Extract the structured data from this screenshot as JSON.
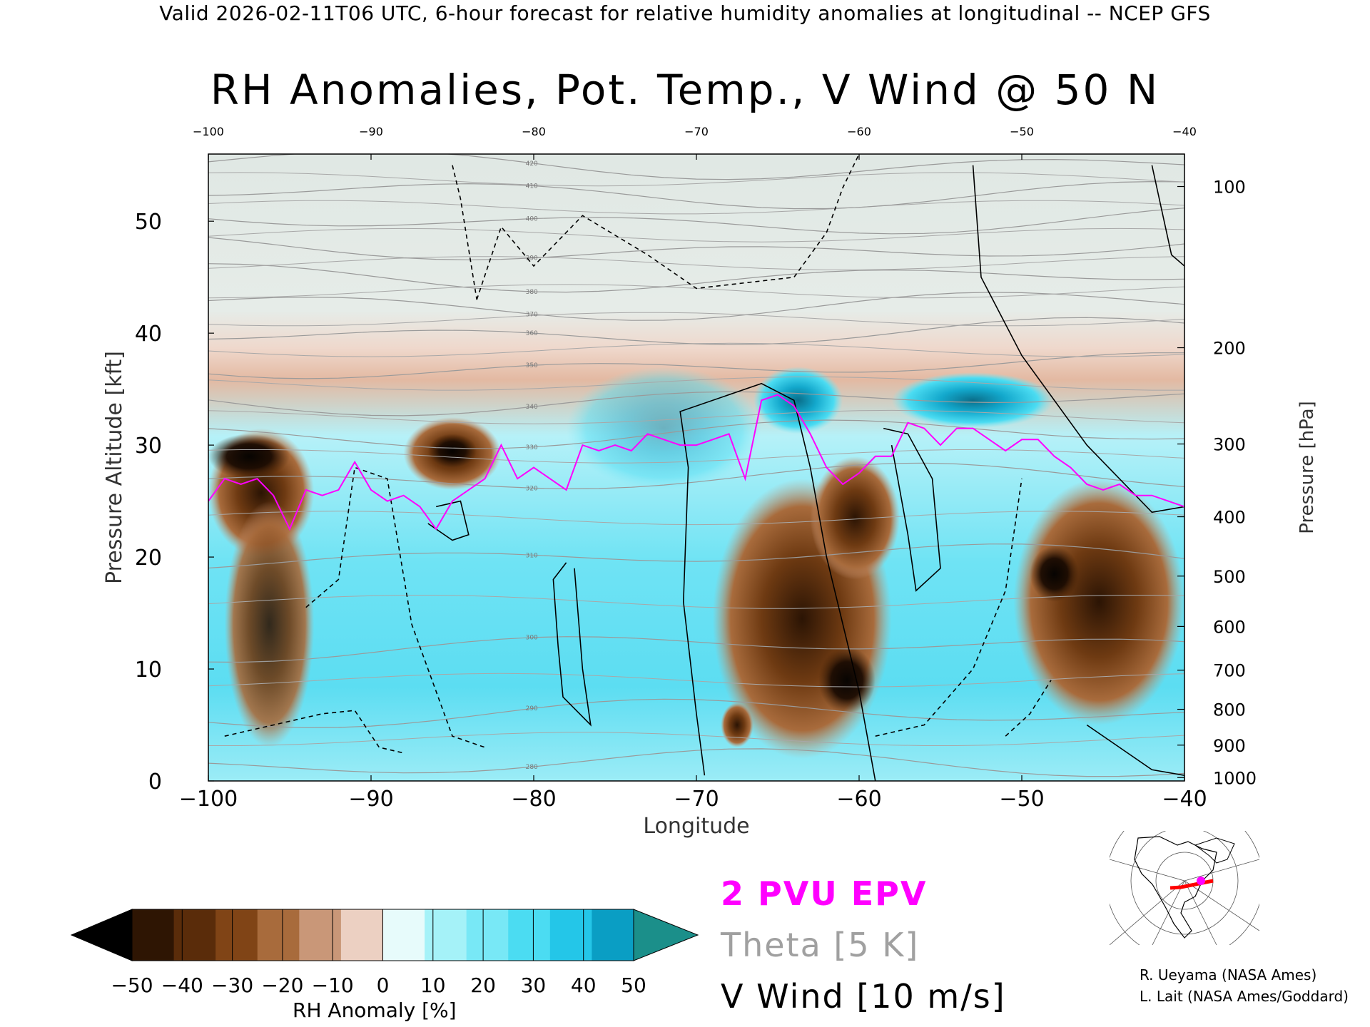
{
  "header": "Valid 2026-02-11T06 UTC, 6-hour forecast for relative humidity anomalies at longitudinal -- NCEP GFS",
  "chart_data": {
    "type": "heatmap",
    "title": "RH Anomalies, Pot. Temp., V Wind @ 50 N",
    "xlabel": "Longitude",
    "ylabel": "Pressure Altitude [kft]",
    "y2label": "Pressure [hPa]",
    "xlim": [
      -100,
      -40
    ],
    "ylim": [
      0,
      56
    ],
    "x_ticks": [
      -100,
      -90,
      -80,
      -70,
      -60,
      -50,
      -40
    ],
    "x_tick_labels": [
      "−100",
      "−90",
      "−80",
      "−70",
      "−60",
      "−50",
      "−40"
    ],
    "x_top_tick_labels": [
      "−100",
      "−90",
      "−80",
      "−70",
      "−60",
      "−50",
      "−40"
    ],
    "y_ticks": [
      0,
      10,
      20,
      30,
      40,
      50
    ],
    "pressure_ticks": [
      {
        "hpa": 100,
        "kft": 53.1
      },
      {
        "hpa": 200,
        "kft": 38.7
      },
      {
        "hpa": 300,
        "kft": 30.1
      },
      {
        "hpa": 400,
        "kft": 23.6
      },
      {
        "hpa": 500,
        "kft": 18.3
      },
      {
        "hpa": 600,
        "kft": 13.8
      },
      {
        "hpa": 700,
        "kft": 9.9
      },
      {
        "hpa": 800,
        "kft": 6.4
      },
      {
        "hpa": 900,
        "kft": 3.2
      },
      {
        "hpa": 1000,
        "kft": 0.3
      }
    ],
    "colorbar": {
      "label": "RH Anomaly [%]",
      "tick_labels": [
        "−50",
        "−40",
        "−30",
        "−20",
        "−10",
        "0",
        "10",
        "20",
        "30",
        "40",
        "50"
      ],
      "colors": [
        "#000000",
        "#2e1503",
        "#5a2c0a",
        "#804416",
        "#a86b3c",
        "#c99778",
        "#ecd0c2",
        "#e7fbfb",
        "#a5f2f8",
        "#78e8f6",
        "#4bdcf2",
        "#24c6e8",
        "#0a9ec4",
        "#1b8f8a"
      ]
    },
    "theta_levels": [
      280,
      290,
      300,
      310,
      320,
      330,
      340,
      350,
      360,
      370,
      380,
      390,
      400,
      410,
      420
    ],
    "epv_2pvu_line": {
      "lon": [
        -100,
        -99,
        -98,
        -97,
        -96,
        -95,
        -94,
        -93,
        -92,
        -91,
        -90,
        -89,
        -88,
        -87,
        -86,
        -85,
        -84,
        -83,
        -82,
        -81,
        -80,
        -79,
        -78,
        -77,
        -76,
        -75,
        -74,
        -73,
        -72,
        -71,
        -70,
        -69,
        -68,
        -67,
        -66,
        -65,
        -64,
        -63,
        -62,
        -61,
        -60,
        -59,
        -58,
        -57,
        -56,
        -55,
        -54,
        -53,
        -52,
        -51,
        -50,
        -49,
        -48,
        -47,
        -46,
        -45,
        -44,
        -43,
        -42,
        -41,
        -40
      ],
      "kft": [
        25,
        27,
        26.5,
        27,
        25.5,
        22.5,
        26,
        25.5,
        26,
        28.5,
        26,
        25,
        25.5,
        24.5,
        22.5,
        25,
        26,
        27,
        30,
        27,
        28,
        27,
        26,
        30,
        29.5,
        30,
        29.5,
        31,
        30.5,
        30,
        30,
        30.5,
        31,
        27,
        34,
        34.5,
        33.5,
        31,
        28,
        26.5,
        27.5,
        29,
        29,
        32,
        31.5,
        30,
        31.5,
        31.5,
        30.5,
        29.5,
        30.5,
        30.5,
        29,
        28,
        26.5,
        26,
        26.5,
        25.5,
        25.5,
        25,
        24.5
      ]
    }
  },
  "legend": {
    "epv": "2 PVU EPV",
    "theta": "Theta [5 K]",
    "vwind": "V Wind [10 m/s]"
  },
  "credits": {
    "line1": "R. Ueyama (NASA Ames)",
    "line2": "L. Lait (NASA Ames/Goddard)"
  }
}
